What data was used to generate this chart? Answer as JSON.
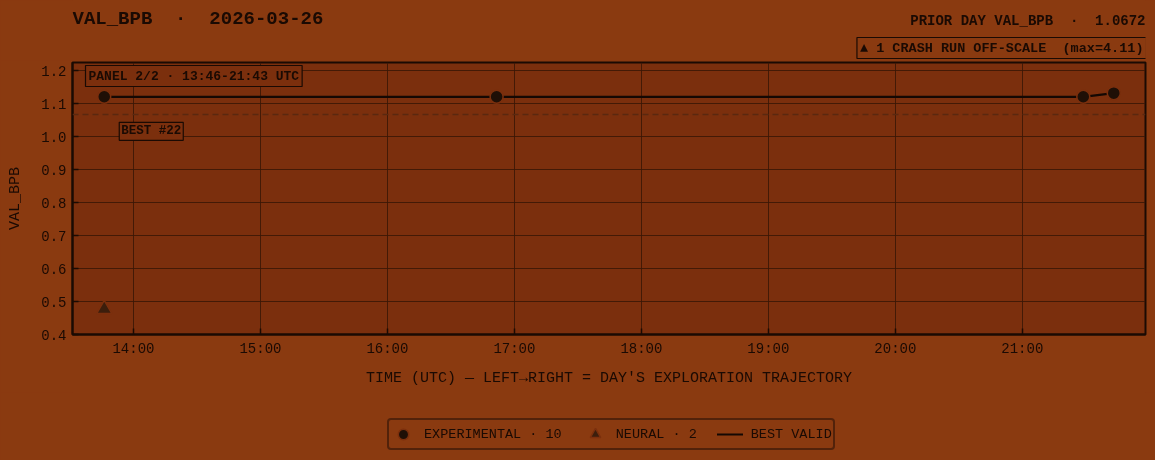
{
  "chart_data": {
    "type": "scatter",
    "title": "VAL_BPB  ·  2026-03-26",
    "subtitle": "PRIOR DAY VAL_BPB  ·  1.0672",
    "xlabel": "TIME (UTC) — LEFT→RIGHT = DAY'S EXPLORATION TRAJECTORY",
    "ylabel": "VAL_BPB",
    "annotations": [
      "PANEL 2/2 · 13:46-21:43 UTC",
      "▲ 1 CRASH RUN OFF-SCALE  (max=4.11)",
      {
        "text": "BEST #22",
        "x": 13.77,
        "y": 1.121
      }
    ],
    "series": [
      {
        "name": "EXPERIMENTAL · 10",
        "marker": "circle",
        "color": "#1f0f06",
        "x": [
          13.77,
          16.86,
          21.48,
          21.72
        ],
        "values": [
          1.121,
          1.121,
          1.121,
          1.132
        ]
      },
      {
        "name": "NEURAL · 2",
        "marker": "triangle",
        "color": "#3c1e0c",
        "x": [
          13.77
        ],
        "values": [
          0.477
        ]
      },
      {
        "name": "BEST VALID",
        "type": "line",
        "color": "#140803",
        "line_style": "solid",
        "x": [
          13.77,
          21.48,
          21.72
        ],
        "values": [
          1.121,
          1.121,
          1.132
        ]
      }
    ],
    "xlim": [
      13.52,
      21.97
    ],
    "xticks": [
      {
        "value": 14,
        "label": "14:00"
      },
      {
        "value": 15,
        "label": "15:00"
      },
      {
        "value": 16,
        "label": "16:00"
      },
      {
        "value": 17,
        "label": "17:00"
      },
      {
        "value": 18,
        "label": "18:00"
      },
      {
        "value": 19,
        "label": "19:00"
      },
      {
        "value": 20,
        "label": "20:00"
      },
      {
        "value": 21,
        "label": "21:00"
      }
    ],
    "ylim": [
      0.4,
      1.225
    ],
    "yticks": [
      0.4,
      0.5,
      0.6,
      0.7,
      0.8,
      0.9,
      {
        "value": 1,
        "label": "1.0"
      },
      1.1,
      1.2
    ],
    "ref_lines": [
      {
        "axis": "y",
        "value": 1.0672,
        "color": "#5a2810",
        "line_style": "dashed"
      }
    ],
    "grid": true,
    "legend": "bottom"
  }
}
